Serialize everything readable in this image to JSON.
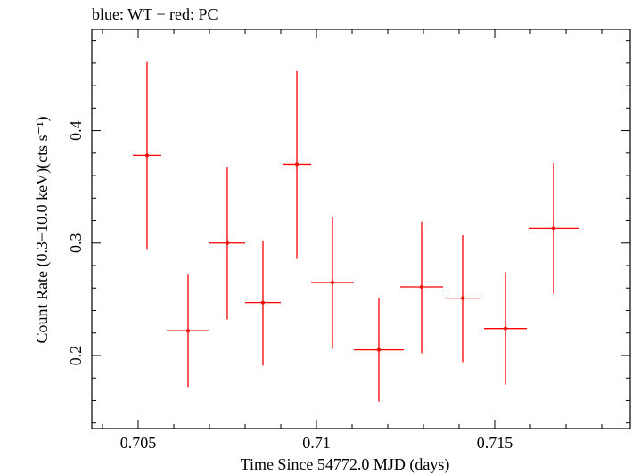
{
  "chart_data": {
    "type": "scatter",
    "title": "blue: WT − red: PC",
    "xlabel": "Time Since 54772.0 MJD (days)",
    "ylabel": "Count Rate (0.3−10.0 keV)(cts s⁻¹)",
    "xlim": [
      0.7037,
      0.7188
    ],
    "ylim": [
      0.135,
      0.49
    ],
    "x_ticks": [
      0.705,
      0.71,
      0.715
    ],
    "x_tick_labels": [
      "0.705",
      "0.71",
      "0.715"
    ],
    "y_ticks": [
      0.2,
      0.3,
      0.4
    ],
    "y_tick_labels": [
      "0.2",
      "0.3",
      "0.4"
    ],
    "grid": false,
    "series": [
      {
        "color": "#ff0000",
        "points": [
          {
            "x": 0.70525,
            "xerr": 0.0004,
            "y": 0.378,
            "yerr_lo": 0.084,
            "yerr_hi": 0.083
          },
          {
            "x": 0.7064,
            "xerr": 0.0006,
            "y": 0.222,
            "yerr_lo": 0.05,
            "yerr_hi": 0.05
          },
          {
            "x": 0.7075,
            "xerr": 0.0005,
            "y": 0.3,
            "yerr_lo": 0.068,
            "yerr_hi": 0.068
          },
          {
            "x": 0.7085,
            "xerr": 0.0005,
            "y": 0.247,
            "yerr_lo": 0.056,
            "yerr_hi": 0.055
          },
          {
            "x": 0.70945,
            "xerr": 0.0004,
            "y": 0.37,
            "yerr_lo": 0.084,
            "yerr_hi": 0.083
          },
          {
            "x": 0.71045,
            "xerr": 0.0006,
            "y": 0.265,
            "yerr_lo": 0.059,
            "yerr_hi": 0.058
          },
          {
            "x": 0.71175,
            "xerr": 0.0007,
            "y": 0.205,
            "yerr_lo": 0.046,
            "yerr_hi": 0.046
          },
          {
            "x": 0.71295,
            "xerr": 0.0006,
            "y": 0.261,
            "yerr_lo": 0.059,
            "yerr_hi": 0.058
          },
          {
            "x": 0.7141,
            "xerr": 0.0005,
            "y": 0.251,
            "yerr_lo": 0.057,
            "yerr_hi": 0.056
          },
          {
            "x": 0.7153,
            "xerr": 0.0006,
            "y": 0.224,
            "yerr_lo": 0.05,
            "yerr_hi": 0.05
          },
          {
            "x": 0.71665,
            "xerr": 0.0007,
            "y": 0.313,
            "yerr_lo": 0.058,
            "yerr_hi": 0.058
          }
        ]
      }
    ]
  }
}
